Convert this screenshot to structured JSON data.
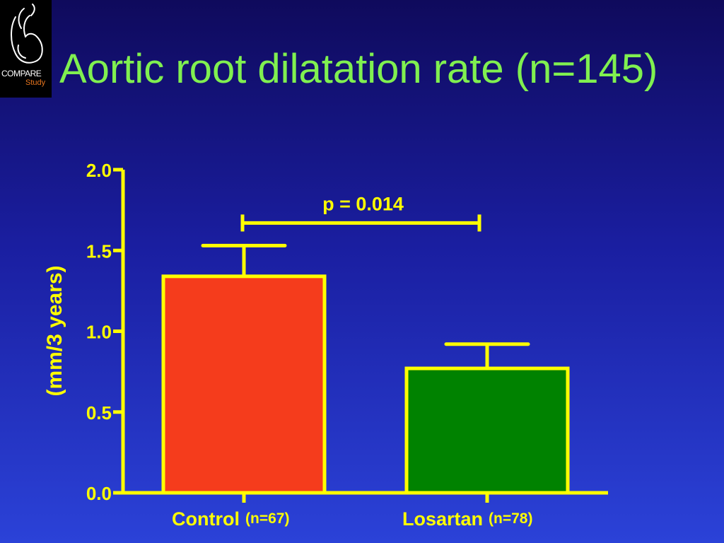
{
  "slide": {
    "title": "Aortic root dilatation rate (n=145)"
  },
  "logo": {
    "word_1": "COMPARE",
    "word_2": "Study",
    "colors": {
      "background": "#000000",
      "text": "#ffffff",
      "accent": "#e8761e"
    }
  },
  "colors": {
    "title": "#80f050",
    "axis": "#ffff00",
    "text": "#ffff00"
  },
  "chart_data": {
    "type": "bar",
    "ylabel": "(mm/3 years)",
    "ylim": [
      0,
      2.0
    ],
    "y_ticks": [
      {
        "value": 0.0,
        "label": "0.0"
      },
      {
        "value": 0.5,
        "label": "0.5"
      },
      {
        "value": 1.0,
        "label": "1.0"
      },
      {
        "value": 1.5,
        "label": "1.5"
      },
      {
        "value": 2.0,
        "label": "2.0"
      }
    ],
    "categories": [
      {
        "label": "Control",
        "n_label": "(n=67)",
        "value": 1.34,
        "error": 0.19,
        "color": "#f53c1c"
      },
      {
        "label": "Losartan",
        "n_label": "(n=78)",
        "value": 0.77,
        "error": 0.15,
        "color": "#008200"
      }
    ],
    "annotation": {
      "text": "p = 0.014",
      "between": [
        "Control",
        "Losartan"
      ],
      "y_value": 1.67
    },
    "grid": false,
    "legend": "none"
  }
}
